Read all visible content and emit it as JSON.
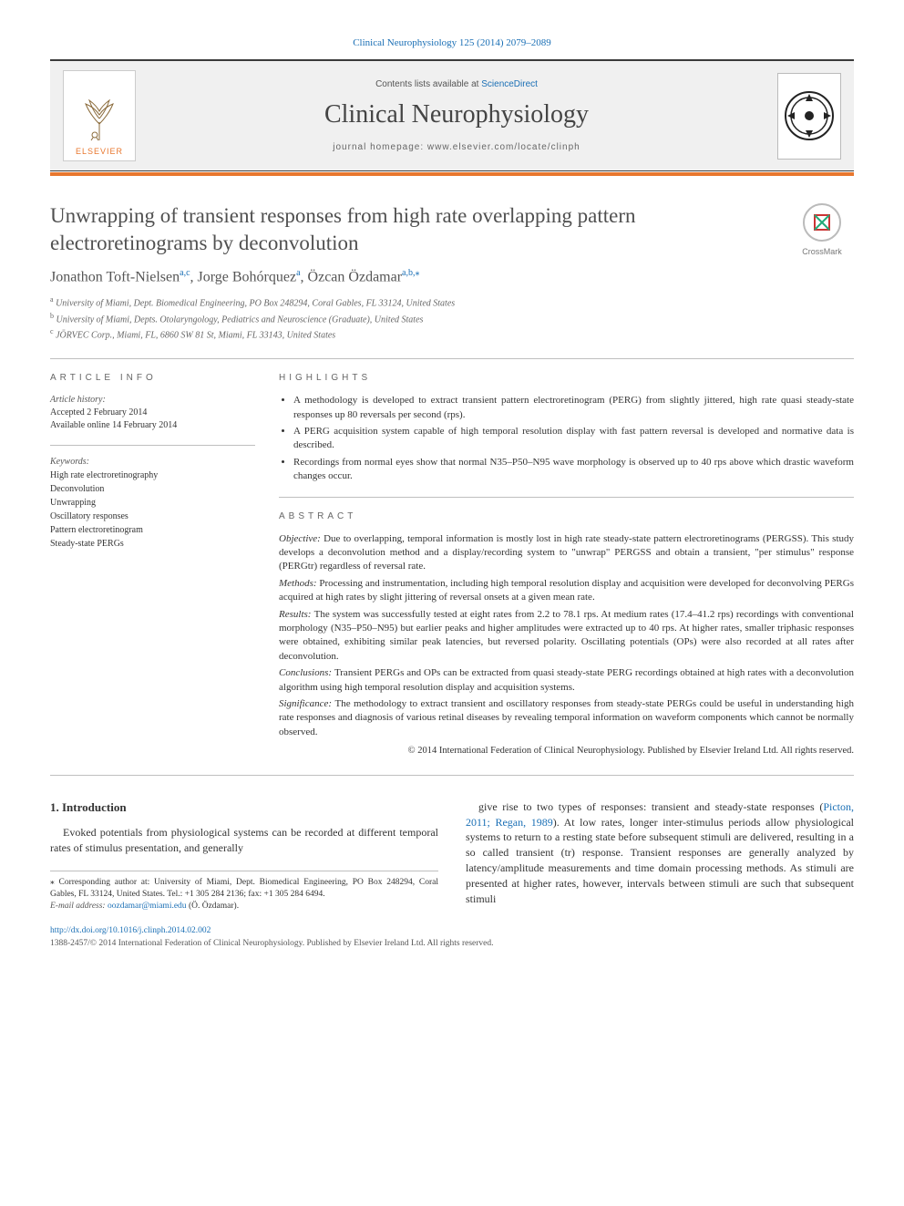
{
  "journal": {
    "topLink": "Clinical Neurophysiology 125 (2014) 2079–2089",
    "contentsLine": "Contents lists available at ",
    "contentsLinkText": "ScienceDirect",
    "title": "Clinical Neurophysiology",
    "homepageLine": "journal homepage: www.elsevier.com/locate/clinph",
    "publisher": "ELSEVIER",
    "accentColor": "#e8772e",
    "borderColor": "#3a3a3a"
  },
  "crossmark": {
    "label": "CrossMark"
  },
  "article": {
    "title": "Unwrapping of transient responses from high rate overlapping pattern electroretinograms by deconvolution",
    "authorsHtmlParts": [
      {
        "t": "name",
        "v": "Jonathon Toft-Nielsen"
      },
      {
        "t": "sup",
        "v": "a,c"
      },
      {
        "t": "sep",
        "v": ", "
      },
      {
        "t": "name",
        "v": "Jorge Bohórquez"
      },
      {
        "t": "sup",
        "v": "a"
      },
      {
        "t": "sep",
        "v": ", "
      },
      {
        "t": "name",
        "v": "Özcan Özdamar"
      },
      {
        "t": "sup",
        "v": "a,b,"
      },
      {
        "t": "star",
        "v": "⁎"
      }
    ],
    "affiliations": [
      {
        "sup": "a",
        "text": "University of Miami, Dept. Biomedical Engineering, PO Box 248294, Coral Gables, FL 33124, United States"
      },
      {
        "sup": "b",
        "text": "University of Miami, Depts. Otolaryngology, Pediatrics and Neuroscience (Graduate), United States"
      },
      {
        "sup": "c",
        "text": "JÖRVEC Corp., Miami, FL, 6860 SW 81 St, Miami, FL 33143, United States"
      }
    ]
  },
  "info": {
    "sectionLabel": "ARTICLE INFO",
    "historyLabel": "Article history:",
    "accepted": "Accepted 2 February 2014",
    "online": "Available online 14 February 2014",
    "keywordsLabel": "Keywords:",
    "keywords": [
      "High rate electroretinography",
      "Deconvolution",
      "Unwrapping",
      "Oscillatory responses",
      "Pattern electroretinogram",
      "Steady-state PERGs"
    ]
  },
  "highlights": {
    "sectionLabel": "HIGHLIGHTS",
    "items": [
      "A methodology is developed to extract transient pattern electroretinogram (PERG) from slightly jittered, high rate quasi steady-state responses up 80 reversals per second (rps).",
      "A PERG acquisition system capable of high temporal resolution display with fast pattern reversal is developed and normative data is described.",
      "Recordings from normal eyes show that normal N35–P50–N95 wave morphology is observed up to 40 rps above which drastic waveform changes occur."
    ]
  },
  "abstract": {
    "sectionLabel": "ABSTRACT",
    "parts": [
      {
        "label": "Objective:",
        "text": "Due to overlapping, temporal information is mostly lost in high rate steady-state pattern electroretinograms (PERGSS). This study develops a deconvolution method and a display/recording system to \"unwrap\" PERGSS and obtain a transient, \"per stimulus\" response (PERGtr) regardless of reversal rate."
      },
      {
        "label": "Methods:",
        "text": "Processing and instrumentation, including high temporal resolution display and acquisition were developed for deconvolving PERGs acquired at high rates by slight jittering of reversal onsets at a given mean rate."
      },
      {
        "label": "Results:",
        "text": "The system was successfully tested at eight rates from 2.2 to 78.1 rps. At medium rates (17.4–41.2 rps) recordings with conventional morphology (N35–P50–N95) but earlier peaks and higher amplitudes were extracted up to 40 rps. At higher rates, smaller triphasic responses were obtained, exhibiting similar peak latencies, but reversed polarity. Oscillating potentials (OPs) were also recorded at all rates after deconvolution."
      },
      {
        "label": "Conclusions:",
        "text": "Transient PERGs and OPs can be extracted from quasi steady-state PERG recordings obtained at high rates with a deconvolution algorithm using high temporal resolution display and acquisition systems."
      },
      {
        "label": "Significance:",
        "text": "The methodology to extract transient and oscillatory responses from steady-state PERGs could be useful in understanding high rate responses and diagnosis of various retinal diseases by revealing temporal information on waveform components which cannot be normally observed."
      }
    ],
    "copyright": "© 2014 International Federation of Clinical Neurophysiology. Published by Elsevier Ireland Ltd. All rights reserved."
  },
  "body": {
    "section1": "1. Introduction",
    "leftPara": "Evoked potentials from physiological systems can be recorded at different temporal rates of stimulus presentation, and generally",
    "rightPara1": "give rise to two types of responses: transient and steady-state responses (",
    "rightCite": "Picton, 2011; Regan, 1989",
    "rightPara2": "). At low rates, longer inter-stimulus periods allow physiological systems to return to a resting state before subsequent stimuli are delivered, resulting in a so called transient (tr) response. Transient responses are generally analyzed by latency/amplitude measurements and time domain processing methods. As stimuli are presented at higher rates, however, intervals between stimuli are such that subsequent stimuli"
  },
  "footnotes": {
    "corrStar": "⁎",
    "corresponding": "Corresponding author at: University of Miami, Dept. Biomedical Engineering, PO Box 248294, Coral Gables, FL 33124, United States. Tel.: +1 305 284 2136; fax: +1 305 284 6494.",
    "emailLabel": "E-mail address: ",
    "email": "oozdamar@miami.edu",
    "emailTrail": " (Ö. Özdamar)."
  },
  "bottom": {
    "doi": "http://dx.doi.org/10.1016/j.clinph.2014.02.002",
    "issn": "1388-2457/© 2014 International Federation of Clinical Neurophysiology. Published by Elsevier Ireland Ltd. All rights reserved."
  }
}
